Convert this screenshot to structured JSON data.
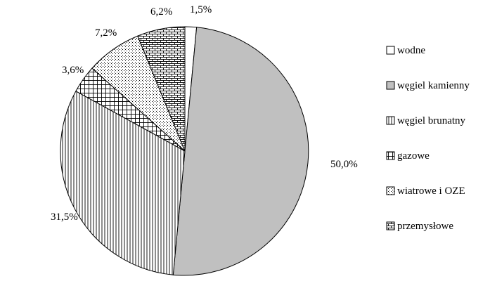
{
  "chart_data": {
    "type": "pie",
    "title": "",
    "slices": [
      {
        "label": "wodne",
        "value": 1.5,
        "value_label": "1,5%",
        "pattern": "white",
        "fill": "#ffffff"
      },
      {
        "label": "węgiel kamienny",
        "value": 50.0,
        "value_label": "50,0%",
        "pattern": "solid-gray",
        "fill": "#c0c0c0"
      },
      {
        "label": "węgiel brunatny",
        "value": 31.5,
        "value_label": "31,5%",
        "pattern": "vertical-lines",
        "fill": "#ffffff"
      },
      {
        "label": "gazowe",
        "value": 3.6,
        "value_label": "3,6%",
        "pattern": "grid",
        "fill": "#ffffff"
      },
      {
        "label": "wiatrowe i OZE",
        "value": 7.2,
        "value_label": "7,2%",
        "pattern": "dots",
        "fill": "#ffffff"
      },
      {
        "label": "przemysłowe",
        "value": 6.2,
        "value_label": "6,2%",
        "pattern": "brick",
        "fill": "#ffffff"
      }
    ],
    "start_angle": "top, clockwise",
    "legend_position": "right",
    "colors": {
      "outline": "#000000",
      "gray_fill": "#c0c0c0",
      "background": "#ffffff"
    }
  }
}
